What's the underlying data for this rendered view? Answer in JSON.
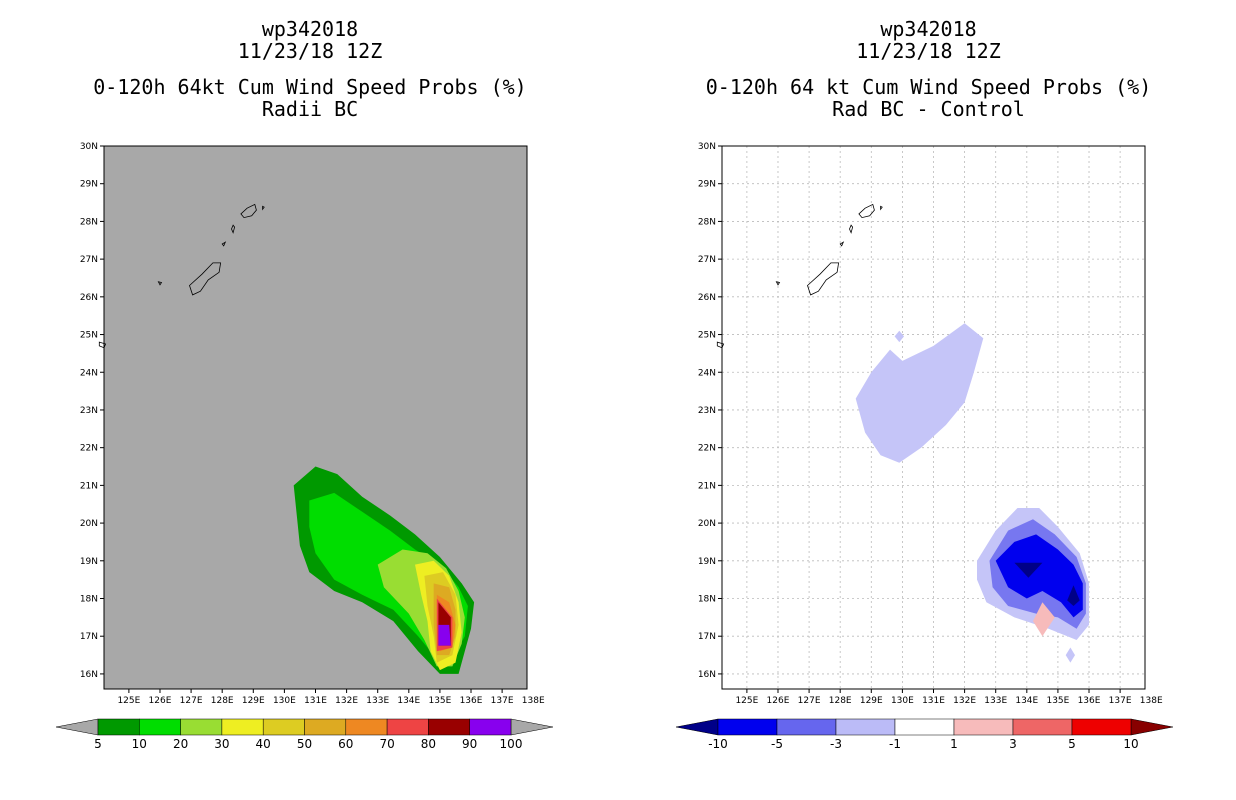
{
  "chart_data": [
    {
      "type": "heatmap",
      "title_line1": "wp342018",
      "title_line2": "11/23/18 12Z",
      "title_line3": "0-120h 64kt Cum Wind Speed Probs (%)",
      "subtitle": "Radii BC",
      "x_ticks": [
        "125E",
        "126E",
        "127E",
        "128E",
        "129E",
        "130E",
        "131E",
        "132E",
        "133E",
        "134E",
        "135E",
        "136E",
        "137E",
        "138E"
      ],
      "y_ticks": [
        "16N",
        "17N",
        "18N",
        "19N",
        "20N",
        "21N",
        "22N",
        "23N",
        "24N",
        "25N",
        "26N",
        "27N",
        "28N",
        "29N",
        "30N"
      ],
      "xlim": [
        124.2,
        137.8
      ],
      "ylim": [
        15.6,
        30.0
      ],
      "background": "#a8a8a8",
      "grid": false,
      "colorbar": {
        "labels": [
          "5",
          "10",
          "20",
          "30",
          "40",
          "50",
          "60",
          "70",
          "80",
          "90",
          "100"
        ],
        "colors": [
          "#009900",
          "#00dd00",
          "#99dd33",
          "#eeee22",
          "#ddcc22",
          "#ddaa22",
          "#ee8822",
          "#ee4444",
          "#990000",
          "#8800ee"
        ],
        "arrow_color": "#a8a8a8"
      },
      "contours": [
        {
          "level": "5-10",
          "color": "#009900",
          "points": [
            [
              130.3,
              21.0
            ],
            [
              131.0,
              21.5
            ],
            [
              131.7,
              21.3
            ],
            [
              132.5,
              20.7
            ],
            [
              133.4,
              20.2
            ],
            [
              134.2,
              19.7
            ],
            [
              135.0,
              19.1
            ],
            [
              135.7,
              18.4
            ],
            [
              136.1,
              17.9
            ],
            [
              136.0,
              17.2
            ],
            [
              135.8,
              16.6
            ],
            [
              135.6,
              16.0
            ],
            [
              135.0,
              16.0
            ],
            [
              134.3,
              16.6
            ],
            [
              133.5,
              17.4
            ],
            [
              132.5,
              17.9
            ],
            [
              131.6,
              18.2
            ],
            [
              130.8,
              18.7
            ],
            [
              130.5,
              19.4
            ],
            [
              130.4,
              20.2
            ]
          ]
        },
        {
          "level": "10-20",
          "color": "#00dd00",
          "points": [
            [
              130.8,
              20.6
            ],
            [
              131.6,
              20.8
            ],
            [
              132.5,
              20.3
            ],
            [
              133.4,
              19.8
            ],
            [
              134.2,
              19.3
            ],
            [
              135.0,
              18.9
            ],
            [
              135.6,
              18.3
            ],
            [
              135.9,
              17.8
            ],
            [
              135.8,
              17.0
            ],
            [
              135.4,
              16.4
            ],
            [
              134.9,
              16.4
            ],
            [
              134.3,
              17.0
            ],
            [
              133.5,
              17.7
            ],
            [
              132.5,
              18.1
            ],
            [
              131.6,
              18.5
            ],
            [
              131.0,
              19.2
            ],
            [
              130.8,
              19.9
            ]
          ]
        },
        {
          "level": "20-30",
          "color": "#99dd33",
          "points": [
            [
              133.0,
              18.9
            ],
            [
              133.8,
              19.3
            ],
            [
              134.6,
              19.2
            ],
            [
              135.2,
              18.8
            ],
            [
              135.6,
              18.2
            ],
            [
              135.8,
              17.5
            ],
            [
              135.7,
              16.8
            ],
            [
              135.4,
              16.2
            ],
            [
              134.9,
              16.2
            ],
            [
              134.5,
              16.9
            ],
            [
              134.0,
              17.6
            ],
            [
              133.2,
              18.3
            ]
          ]
        },
        {
          "level": "30-40",
          "color": "#eeee22",
          "points": [
            [
              134.2,
              18.9
            ],
            [
              134.8,
              19.0
            ],
            [
              135.3,
              18.6
            ],
            [
              135.6,
              17.9
            ],
            [
              135.7,
              17.1
            ],
            [
              135.5,
              16.3
            ],
            [
              135.0,
              16.1
            ],
            [
              134.7,
              16.6
            ],
            [
              134.6,
              17.4
            ],
            [
              134.4,
              18.1
            ]
          ]
        },
        {
          "level": "40-50",
          "color": "#ddcc22",
          "points": [
            [
              134.5,
              18.6
            ],
            [
              135.1,
              18.7
            ],
            [
              135.5,
              18.1
            ],
            [
              135.6,
              17.3
            ],
            [
              135.4,
              16.5
            ],
            [
              134.9,
              16.3
            ],
            [
              134.8,
              17.0
            ],
            [
              134.6,
              17.8
            ]
          ]
        },
        {
          "level": "50-60",
          "color": "#ddaa22",
          "points": [
            [
              134.8,
              18.4
            ],
            [
              135.3,
              18.3
            ],
            [
              135.5,
              17.7
            ],
            [
              135.5,
              17.0
            ],
            [
              135.3,
              16.5
            ],
            [
              134.9,
              16.5
            ],
            [
              134.8,
              17.3
            ]
          ]
        },
        {
          "level": "60-70",
          "color": "#ee8822",
          "points": [
            [
              134.9,
              18.1
            ],
            [
              135.3,
              17.9
            ],
            [
              135.5,
              17.3
            ],
            [
              135.4,
              16.7
            ],
            [
              135.0,
              16.6
            ],
            [
              134.9,
              17.3
            ]
          ]
        },
        {
          "level": "70-80",
          "color": "#ee4444",
          "points": [
            [
              134.9,
              18.0
            ],
            [
              135.4,
              17.5
            ],
            [
              135.4,
              16.7
            ],
            [
              134.9,
              16.6
            ]
          ]
        },
        {
          "level": "80-90",
          "color": "#990000",
          "points": [
            [
              134.95,
              17.9
            ],
            [
              135.35,
              17.5
            ],
            [
              135.35,
              16.75
            ],
            [
              134.95,
              16.75
            ]
          ]
        },
        {
          "level": "90-100",
          "color": "#8800ee",
          "points": [
            [
              134.95,
              17.3
            ],
            [
              135.3,
              17.3
            ],
            [
              135.35,
              16.75
            ],
            [
              134.95,
              16.75
            ]
          ]
        }
      ]
    },
    {
      "type": "heatmap",
      "title_line1": "wp342018",
      "title_line2": "11/23/18 12Z",
      "title_line3": "0-120h 64 kt Cum Wind Speed Probs (%)",
      "subtitle": "Rad BC - Control",
      "x_ticks": [
        "125E",
        "126E",
        "127E",
        "128E",
        "129E",
        "130E",
        "131E",
        "132E",
        "133E",
        "134E",
        "135E",
        "136E",
        "137E",
        "138E"
      ],
      "y_ticks": [
        "16N",
        "17N",
        "18N",
        "19N",
        "20N",
        "21N",
        "22N",
        "23N",
        "24N",
        "25N",
        "26N",
        "27N",
        "28N",
        "29N",
        "30N"
      ],
      "xlim": [
        124.2,
        137.8
      ],
      "ylim": [
        15.6,
        30.0
      ],
      "background": "#ffffff",
      "grid": true,
      "colorbar": {
        "labels": [
          "-10",
          "-5",
          "-3",
          "-1",
          "1",
          "3",
          "5",
          "10"
        ],
        "colors": [
          "#0000ee",
          "#6666ee",
          "#bbbbf7",
          "#ffffff",
          "#f7bbbb",
          "#ee6666",
          "#ee0000"
        ],
        "arrow_left_color": "#000088",
        "arrow_right_color": "#880000"
      },
      "contours": [
        {
          "level": "-3 to -1",
          "color": "#c5c5f8",
          "points": [
            [
              128.5,
              23.3
            ],
            [
              129.0,
              24.0
            ],
            [
              129.6,
              24.6
            ],
            [
              130.0,
              24.3
            ],
            [
              131.0,
              24.7
            ],
            [
              132.0,
              25.3
            ],
            [
              132.6,
              24.9
            ],
            [
              132.3,
              24.0
            ],
            [
              132.0,
              23.2
            ],
            [
              131.4,
              22.6
            ],
            [
              130.6,
              22.0
            ],
            [
              129.9,
              21.6
            ],
            [
              129.3,
              21.8
            ],
            [
              128.8,
              22.4
            ]
          ]
        },
        {
          "level": "-3 to -1",
          "color": "#c5c5f8",
          "points": [
            [
              129.9,
              25.1
            ],
            [
              130.05,
              24.95
            ],
            [
              129.9,
              24.8
            ],
            [
              129.75,
              24.95
            ]
          ]
        },
        {
          "level": "-3 to -1",
          "color": "#c5c5f8",
          "points": [
            [
              132.4,
              19.0
            ],
            [
              133.0,
              19.8
            ],
            [
              133.7,
              20.4
            ],
            [
              134.4,
              20.4
            ],
            [
              135.0,
              19.9
            ],
            [
              135.7,
              19.2
            ],
            [
              136.0,
              18.4
            ],
            [
              136.0,
              17.3
            ],
            [
              135.6,
              16.9
            ],
            [
              134.7,
              17.2
            ],
            [
              133.6,
              17.5
            ],
            [
              132.7,
              17.9
            ],
            [
              132.4,
              18.5
            ]
          ]
        },
        {
          "level": "-3 to -1",
          "color": "#c5c5f8",
          "points": [
            [
              135.4,
              16.7
            ],
            [
              135.55,
              16.5
            ],
            [
              135.4,
              16.3
            ],
            [
              135.25,
              16.5
            ]
          ]
        },
        {
          "level": "-5 to -3",
          "color": "#7777f0",
          "points": [
            [
              132.8,
              19.0
            ],
            [
              133.4,
              19.8
            ],
            [
              134.2,
              20.1
            ],
            [
              134.9,
              19.7
            ],
            [
              135.6,
              19.1
            ],
            [
              135.9,
              18.4
            ],
            [
              135.9,
              17.6
            ],
            [
              135.6,
              17.2
            ],
            [
              135.0,
              17.5
            ],
            [
              134.3,
              17.6
            ],
            [
              133.4,
              17.8
            ],
            [
              132.9,
              18.3
            ]
          ]
        },
        {
          "level": "-10 to -5",
          "color": "#0000ee",
          "points": [
            [
              133.0,
              19.0
            ],
            [
              133.6,
              19.5
            ],
            [
              134.3,
              19.7
            ],
            [
              135.0,
              19.3
            ],
            [
              135.5,
              18.9
            ],
            [
              135.8,
              18.4
            ],
            [
              135.8,
              17.7
            ],
            [
              135.5,
              17.5
            ],
            [
              135.1,
              17.9
            ],
            [
              134.5,
              18.2
            ],
            [
              134.0,
              18.0
            ],
            [
              133.4,
              18.3
            ]
          ]
        },
        {
          "level": "< -10",
          "color": "#000088",
          "points": [
            [
              133.6,
              18.95
            ],
            [
              134.5,
              18.95
            ],
            [
              134.05,
              18.55
            ]
          ]
        },
        {
          "level": "< -10",
          "color": "#000088",
          "points": [
            [
              135.5,
              18.35
            ],
            [
              135.7,
              17.95
            ],
            [
              135.5,
              17.8
            ],
            [
              135.3,
              17.95
            ]
          ]
        },
        {
          "level": "1 to 3",
          "color": "#f7bbbb",
          "points": [
            [
              134.5,
              17.9
            ],
            [
              134.9,
              17.5
            ],
            [
              134.5,
              17.0
            ],
            [
              134.2,
              17.4
            ]
          ]
        }
      ]
    }
  ],
  "land": [
    [
      [
        128.6,
        28.2
      ],
      [
        128.8,
        28.35
      ],
      [
        129.05,
        28.45
      ],
      [
        129.1,
        28.3
      ],
      [
        128.95,
        28.15
      ],
      [
        128.7,
        28.1
      ]
    ],
    [
      [
        129.3,
        28.4
      ],
      [
        129.35,
        28.38
      ],
      [
        129.3,
        28.32
      ]
    ],
    [
      [
        128.3,
        27.8
      ],
      [
        128.35,
        27.9
      ],
      [
        128.4,
        27.85
      ],
      [
        128.35,
        27.7
      ]
    ],
    [
      [
        128.0,
        27.4
      ],
      [
        128.1,
        27.45
      ],
      [
        128.05,
        27.35
      ]
    ],
    [
      [
        126.95,
        26.3
      ],
      [
        127.35,
        26.6
      ],
      [
        127.7,
        26.9
      ],
      [
        127.95,
        26.9
      ],
      [
        127.9,
        26.65
      ],
      [
        127.55,
        26.45
      ],
      [
        127.3,
        26.15
      ],
      [
        127.05,
        26.05
      ]
    ],
    [
      [
        125.95,
        26.4
      ],
      [
        126.05,
        26.38
      ],
      [
        126.0,
        26.32
      ]
    ],
    [
      [
        124.05,
        24.8
      ],
      [
        124.25,
        24.75
      ],
      [
        124.2,
        24.65
      ],
      [
        124.05,
        24.7
      ]
    ]
  ]
}
